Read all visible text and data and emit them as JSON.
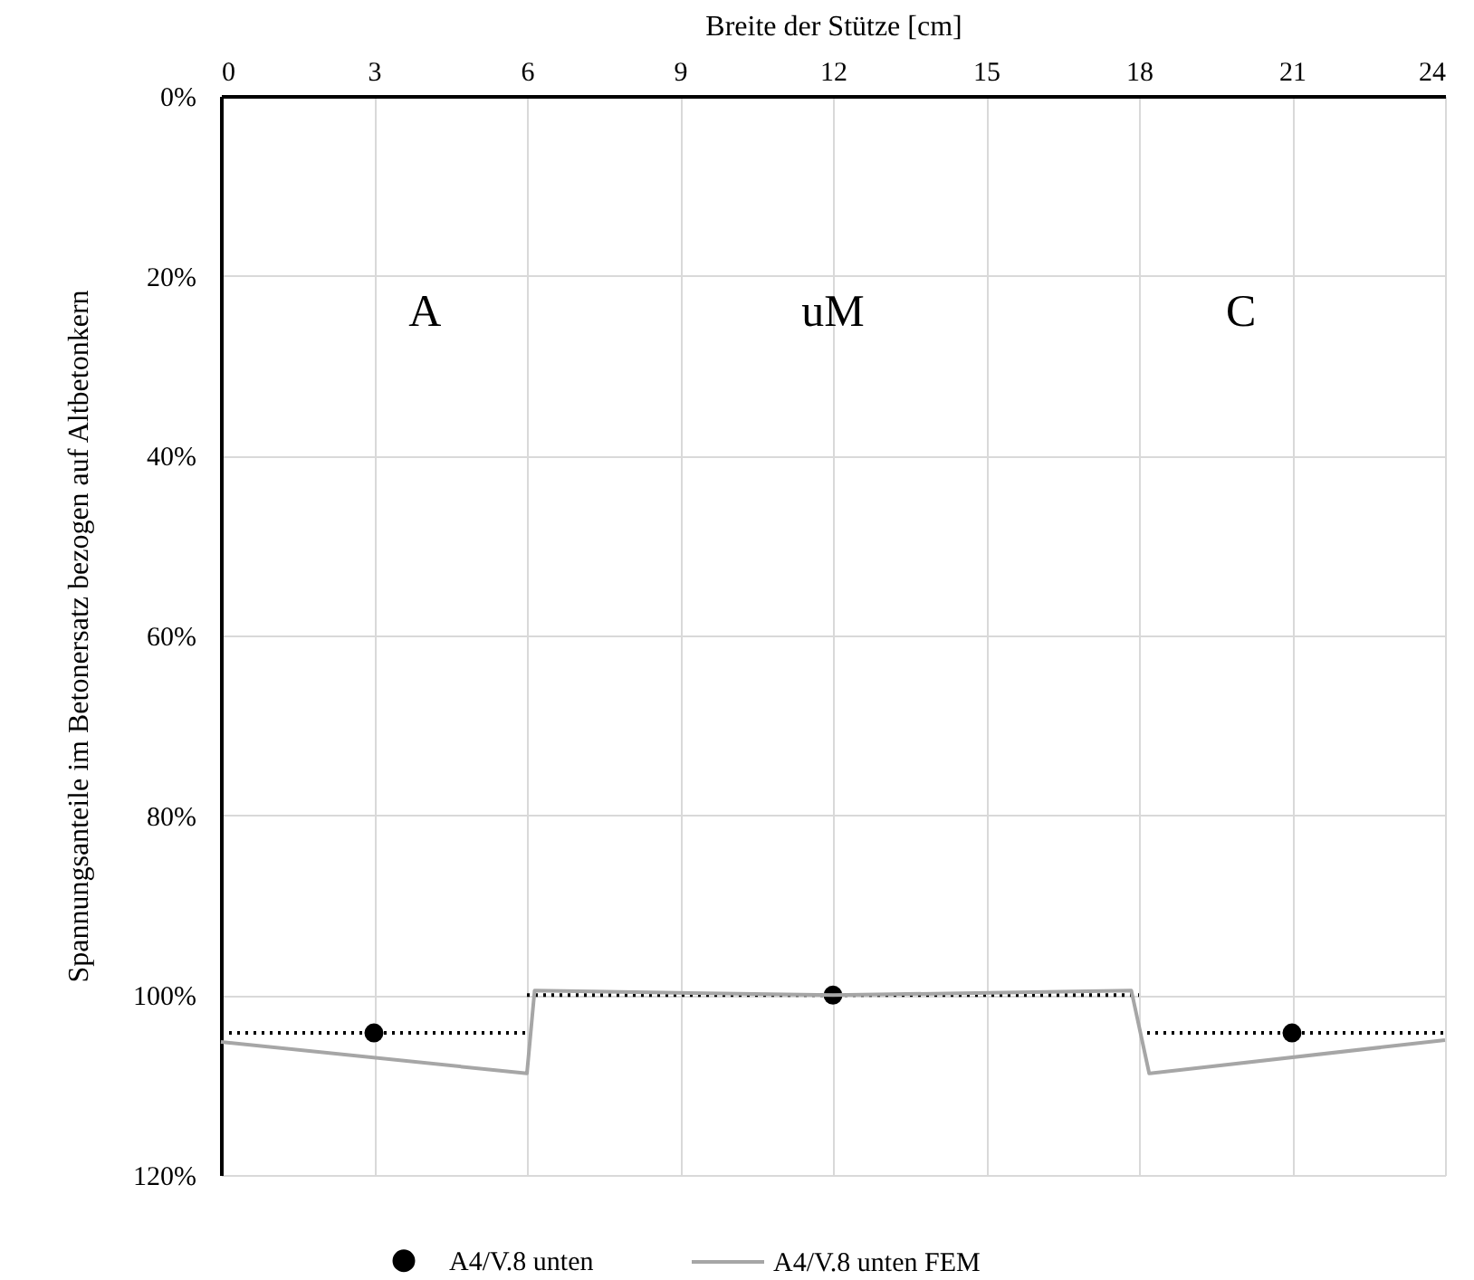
{
  "chart_data": {
    "type": "line",
    "xlabel": "Breite der Stütze [cm]",
    "ylabel": "Spannungsanteile im Betonersatz bezogen auf  Altbetonkern",
    "xlim": [
      0,
      24
    ],
    "xticks": [
      0,
      3,
      6,
      9,
      12,
      15,
      18,
      21,
      24
    ],
    "ylim": [
      120,
      0
    ],
    "yticks": [
      {
        "value": 0,
        "label": "0%"
      },
      {
        "value": 20,
        "label": "20%"
      },
      {
        "value": 40,
        "label": "40%"
      },
      {
        "value": 60,
        "label": "60%"
      },
      {
        "value": 80,
        "label": "80%"
      },
      {
        "value": 100,
        "label": "100%"
      },
      {
        "value": 120,
        "label": "120%"
      }
    ],
    "grid": true,
    "legend": "bottom",
    "series": [
      {
        "color": "#000000",
        "line_style": "dotted",
        "x": [
          0,
          6,
          null,
          6,
          18,
          null,
          18,
          24
        ],
        "values": [
          104.2,
          104.2,
          null,
          100,
          100,
          null,
          104.2,
          104.2
        ]
      },
      {
        "type": "scatter",
        "name": "A4/V.8 unten",
        "color": "#000000",
        "marker": "circle",
        "x": [
          3,
          12,
          21
        ],
        "values": [
          104.2,
          100,
          104.2
        ]
      },
      {
        "name": "A4/V.8 unten FEM",
        "color": "#a6a6a6",
        "line_style": "solid",
        "x": [
          0,
          6,
          6.15,
          12,
          17.85,
          18.2,
          24
        ],
        "values": [
          105.2,
          108.7,
          99.5,
          100,
          99.5,
          108.7,
          105
        ]
      }
    ],
    "annotations": [
      "A",
      "uM",
      "C"
    ]
  }
}
